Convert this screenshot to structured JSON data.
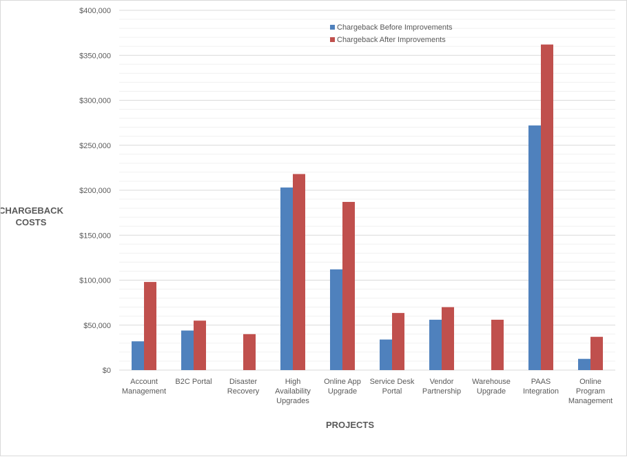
{
  "chart_data": {
    "type": "bar",
    "title": "",
    "xlabel": "PROJECTS",
    "ylabel": "CHARGEBACK COSTS",
    "ylim": [
      0,
      400000
    ],
    "yticks": [
      0,
      50000,
      100000,
      150000,
      200000,
      250000,
      300000,
      350000,
      400000
    ],
    "ytick_labels": [
      "$0",
      "$50,000",
      "$100,000",
      "$150,000",
      "$200,000",
      "$250,000",
      "$300,000",
      "$350,000",
      "$400,000"
    ],
    "minor_grid_step": 10000,
    "grid": true,
    "legend_position": "top-center",
    "categories": [
      [
        "Account",
        "Management"
      ],
      [
        "B2C Portal"
      ],
      [
        "Disaster",
        "Recovery"
      ],
      [
        "High",
        "Availability",
        "Upgrades"
      ],
      [
        "Online App",
        "Upgrade"
      ],
      [
        "Service Desk",
        "Portal"
      ],
      [
        "Vendor",
        "Partnership"
      ],
      [
        "Warehouse",
        "Upgrade"
      ],
      [
        "PAAS",
        "Integration"
      ],
      [
        "Online",
        "Program",
        "Management"
      ]
    ],
    "series": [
      {
        "name": "Chargeback Before Improvements",
        "color": "#4f81bd",
        "values": [
          32000,
          44000,
          0,
          203000,
          112000,
          34000,
          56000,
          0,
          272000,
          12500
        ]
      },
      {
        "name": "Chargeback After Improvements",
        "color": "#c0504d",
        "values": [
          98000,
          55000,
          40000,
          218000,
          187000,
          63500,
          70000,
          56000,
          362000,
          37000
        ]
      }
    ]
  }
}
